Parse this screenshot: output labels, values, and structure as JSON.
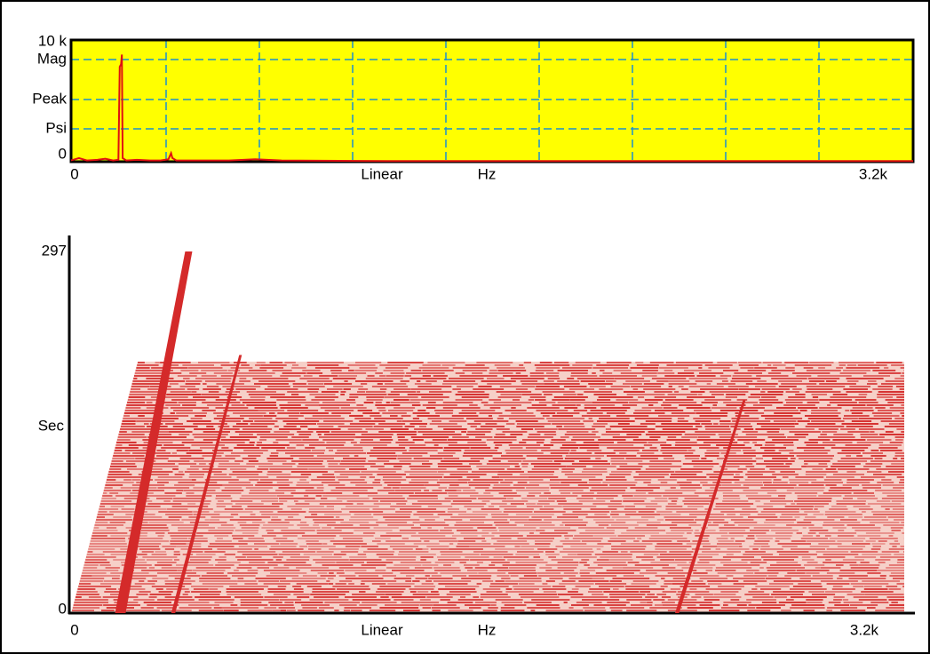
{
  "chart_data": [
    {
      "type": "line",
      "x_label": "Linear",
      "x_unit": "Hz",
      "y_label": [
        "Mag",
        "Peak",
        "Psi"
      ],
      "x": [
        0,
        30,
        60,
        100,
        130,
        160,
        180,
        185,
        190,
        193,
        196,
        210,
        250,
        300,
        340,
        370,
        380,
        385,
        400,
        600,
        700,
        800,
        1200,
        3200
      ],
      "values": [
        100,
        300,
        100,
        150,
        250,
        100,
        150,
        7800,
        8000,
        8800,
        300,
        100,
        150,
        100,
        100,
        200,
        700,
        300,
        100,
        100,
        200,
        100,
        50,
        50
      ],
      "color": "#e01010",
      "background": "#ffff00",
      "xlim": [
        0,
        3200
      ],
      "xticks": [
        0,
        {
          "value": 3200,
          "label": "3.2k"
        }
      ],
      "ylim": [
        0,
        10000
      ],
      "yticks": [
        0,
        {
          "value": 10000,
          "label": "10 k"
        }
      ],
      "grid": true
    },
    {
      "type": "waterfall",
      "x_label": "Linear",
      "x_unit": "Hz",
      "y_label": "Sec",
      "x": [
        196,
        395,
        2330
      ],
      "values": [
        297,
        212,
        175
      ],
      "color": "#d42a2a",
      "xlim": [
        0,
        3200
      ],
      "xticks": [
        0,
        {
          "value": 3200,
          "label": "3.2k"
        }
      ],
      "ylim": [
        0,
        297
      ],
      "yticks": [
        0,
        297
      ]
    }
  ]
}
